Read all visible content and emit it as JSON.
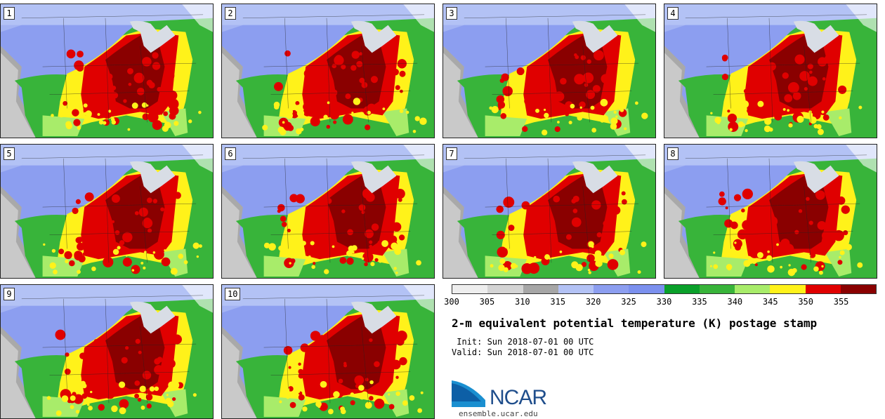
{
  "figure": {
    "title": "2-m equivalent potential temperature (K) postage stamp",
    "init_label": " Init: Sun 2018-07-01 00 UTC",
    "valid_label": "Valid: Sun 2018-07-01 00 UTC"
  },
  "members": [
    "1",
    "2",
    "3",
    "4",
    "5",
    "6",
    "7",
    "8",
    "9",
    "10"
  ],
  "colorbar": {
    "unit": "K",
    "ticks": [
      "300",
      "305",
      "310",
      "315",
      "320",
      "325",
      "330",
      "335",
      "340",
      "345",
      "350",
      "355"
    ],
    "colors": [
      "#eeeeee",
      "#d4d4d4",
      "#a6a6a6",
      "#b3c2f5",
      "#8c9ef0",
      "#7b90ee",
      "#0aa02a",
      "#38b43a",
      "#a8ec6a",
      "#fff21a",
      "#e00000",
      "#8a0000"
    ]
  },
  "map_colors": {
    "ocean_north": "#b3c2f5",
    "pacific": "#a9a9a9",
    "west": "#8c9ef0",
    "canada": "#8c9ef0",
    "plains_band": "#38b43a",
    "atlantic": "#38b43a",
    "gulf": "#38b43a",
    "gulf_coast": "#a8ec6a",
    "central": "#fff21a",
    "hot": "#e00000",
    "hottest": "#8a0000",
    "lakes": "#d8dde5"
  },
  "branding": {
    "logo_text": "NCAR",
    "url": "ensemble.ucar.edu"
  }
}
